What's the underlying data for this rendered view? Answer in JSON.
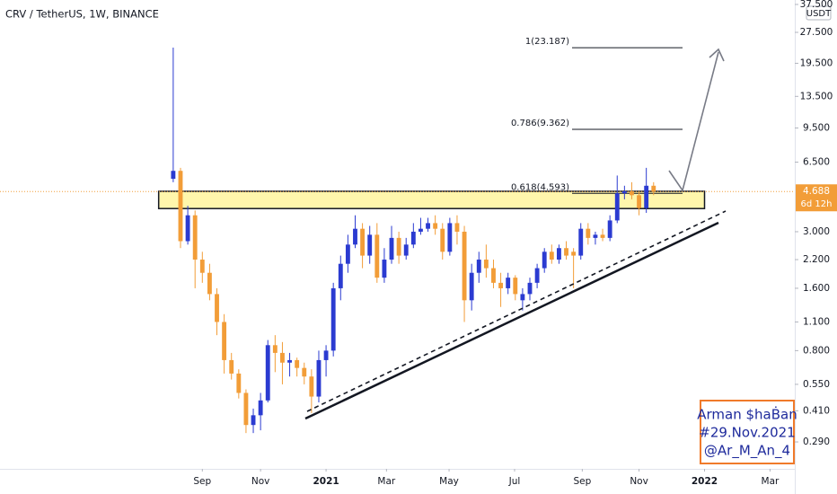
{
  "chart_data": {
    "type": "candlestick",
    "title": "CRV / TetherUS, 1W, BINANCE",
    "currency": "USDT",
    "log_scale": true,
    "up_color": "#2b3bd1",
    "down_color": "#f29d38",
    "open": [
      5.4,
      5.9,
      2.7,
      3.6,
      2.2,
      1.9,
      1.5,
      1.1,
      0.72,
      0.62,
      0.5,
      0.35,
      0.39,
      0.46,
      0.85,
      0.78,
      0.7,
      0.72,
      0.66,
      0.6,
      0.48,
      0.72,
      0.8,
      1.6,
      2.1,
      2.6,
      3.1,
      2.3,
      2.9,
      1.8,
      2.2,
      2.8,
      2.3,
      2.6,
      3.0,
      3.1,
      3.3,
      3.1,
      2.4,
      3.3,
      3.0,
      1.4,
      1.9,
      2.2,
      2.0,
      1.7,
      1.6,
      1.8,
      1.4,
      1.5,
      1.7,
      2.0,
      2.4,
      2.2,
      2.5,
      2.4,
      2.3,
      3.1,
      2.8,
      2.9,
      2.8,
      3.4,
      4.6,
      4.7,
      4.5,
      3.9,
      5.0
    ],
    "high": [
      23.2,
      6.1,
      4.0,
      3.8,
      2.4,
      2.1,
      1.6,
      1.2,
      0.78,
      0.65,
      0.52,
      0.42,
      0.5,
      0.9,
      0.95,
      0.88,
      0.78,
      0.74,
      0.7,
      0.65,
      0.8,
      0.85,
      1.7,
      2.3,
      2.9,
      3.6,
      3.3,
      3.2,
      3.3,
      2.5,
      3.2,
      3.0,
      2.8,
      3.3,
      3.5,
      3.5,
      3.6,
      3.3,
      3.5,
      3.6,
      3.2,
      2.1,
      2.4,
      2.6,
      2.2,
      1.9,
      1.9,
      1.85,
      1.6,
      1.8,
      2.1,
      2.5,
      2.6,
      2.6,
      2.7,
      2.5,
      3.3,
      3.3,
      3.0,
      3.1,
      3.6,
      5.6,
      5.0,
      5.2,
      4.7,
      6.1,
      5.2
    ],
    "low": [
      5.2,
      2.5,
      2.6,
      1.6,
      1.7,
      1.4,
      0.95,
      0.62,
      0.58,
      0.47,
      0.32,
      0.32,
      0.33,
      0.45,
      0.63,
      0.55,
      0.6,
      0.6,
      0.55,
      0.4,
      0.45,
      0.6,
      0.75,
      1.4,
      1.9,
      2.5,
      2.0,
      2.1,
      1.7,
      1.7,
      2.1,
      2.1,
      2.2,
      2.5,
      2.9,
      3.0,
      2.9,
      2.2,
      2.3,
      2.6,
      1.1,
      1.25,
      1.7,
      1.8,
      1.6,
      1.3,
      1.5,
      1.4,
      1.25,
      1.4,
      1.6,
      1.9,
      2.1,
      2.1,
      2.2,
      1.6,
      2.2,
      2.6,
      2.6,
      2.7,
      2.7,
      3.3,
      4.3,
      4.3,
      3.6,
      3.7,
      4.5
    ],
    "close": [
      5.9,
      2.7,
      3.6,
      2.2,
      1.9,
      1.5,
      1.1,
      0.72,
      0.62,
      0.5,
      0.35,
      0.39,
      0.46,
      0.85,
      0.78,
      0.7,
      0.72,
      0.66,
      0.6,
      0.48,
      0.72,
      0.8,
      1.6,
      2.1,
      2.6,
      3.1,
      2.3,
      2.9,
      1.8,
      2.2,
      2.8,
      2.3,
      2.6,
      3.0,
      3.1,
      3.3,
      3.1,
      2.4,
      3.3,
      3.0,
      1.4,
      1.9,
      2.2,
      2.0,
      1.7,
      1.6,
      1.8,
      1.5,
      1.5,
      1.7,
      2.0,
      2.4,
      2.2,
      2.5,
      2.3,
      2.3,
      3.1,
      2.8,
      2.9,
      2.8,
      3.4,
      4.6,
      4.7,
      4.5,
      3.9,
      5.0,
      4.688
    ],
    "xlim": [
      -23.8,
      85.4
    ],
    "xticks": [
      {
        "value": 4,
        "label": "Sep"
      },
      {
        "value": 12,
        "label": "Nov"
      },
      {
        "value": 21,
        "label": "2021"
      },
      {
        "value": 29.3,
        "label": "Mar"
      },
      {
        "value": 37.9,
        "label": "May"
      },
      {
        "value": 46.9,
        "label": "Jul"
      },
      {
        "value": 56.2,
        "label": "Sep"
      },
      {
        "value": 64,
        "label": "Nov"
      },
      {
        "value": 73,
        "label": "2022"
      },
      {
        "value": 82,
        "label": "Mar"
      }
    ],
    "ylim": [
      0.215,
      39.4
    ],
    "yticks": [
      {
        "value": 0.29,
        "label": "0.290"
      },
      {
        "value": 0.41,
        "label": "0.410"
      },
      {
        "value": 0.55,
        "label": "0.550"
      },
      {
        "value": 0.8,
        "label": "0.800"
      },
      {
        "value": 1.1,
        "label": "1.100"
      },
      {
        "value": 1.6,
        "label": "1.600"
      },
      {
        "value": 2.2,
        "label": "2.200"
      },
      {
        "value": 3,
        "label": "3.000"
      },
      {
        "value": 6.5,
        "label": "6.500"
      },
      {
        "value": 9.5,
        "label": "9.500"
      },
      {
        "value": 13.5,
        "label": "13.500"
      },
      {
        "value": 19.5,
        "label": "19.500"
      },
      {
        "value": 27.5,
        "label": "27.500"
      },
      {
        "value": 37.5,
        "label": "37.500"
      }
    ],
    "last_price": 4.688,
    "countdown": "6d 12h",
    "zone": [
      3.88,
      4.7
    ],
    "fib_levels": [
      {
        "value": 23.187,
        "label": "1(23.187)"
      },
      {
        "value": 9.362,
        "label": "0.786(9.362)"
      },
      {
        "value": 4.593,
        "label": "0.618(4.593)"
      }
    ],
    "watermark": [
      "Arman $haḂan",
      "#29.Nov.2021",
      "@Ar_M_An_4"
    ]
  }
}
